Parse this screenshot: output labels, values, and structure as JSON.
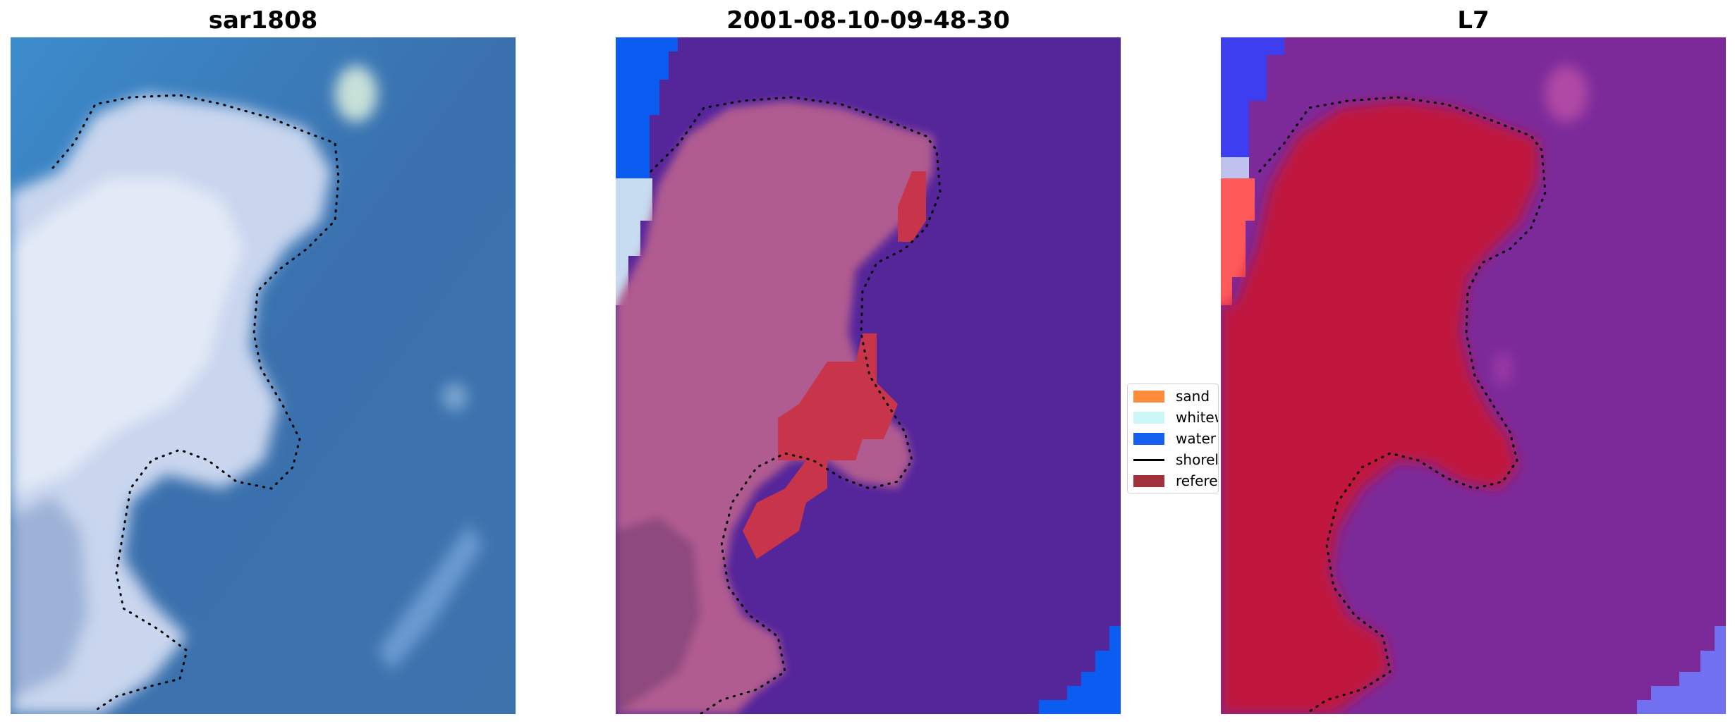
{
  "panels": [
    {
      "title": "sar1808",
      "image": "satellite-rgb-image"
    },
    {
      "title": "2001-08-10-09-48-30",
      "image": "classified-image"
    },
    {
      "title": "L7",
      "image": "mndwi-image"
    }
  ],
  "legend": {
    "items": [
      {
        "label": "sand",
        "color": "#ff8c3a",
        "type": "patch"
      },
      {
        "label": "whitewater",
        "color": "#ccf7f7",
        "type": "patch"
      },
      {
        "label": "water",
        "color": "#1560f0",
        "type": "patch"
      },
      {
        "label": "shoreline",
        "color": "#000000",
        "type": "line"
      },
      {
        "label": "reference",
        "color": "#a3303a",
        "type": "patch"
      }
    ]
  },
  "colors": {
    "rgb_water": "#3a72ad",
    "rgb_land": "#cfdaf0",
    "class_water_overlay": "#55259a",
    "class_land_overlay": "#b05b90",
    "class_reference": "#c8344a",
    "mndwi_land": "#c81a46",
    "mndwi_water": "#7c2a9a"
  }
}
